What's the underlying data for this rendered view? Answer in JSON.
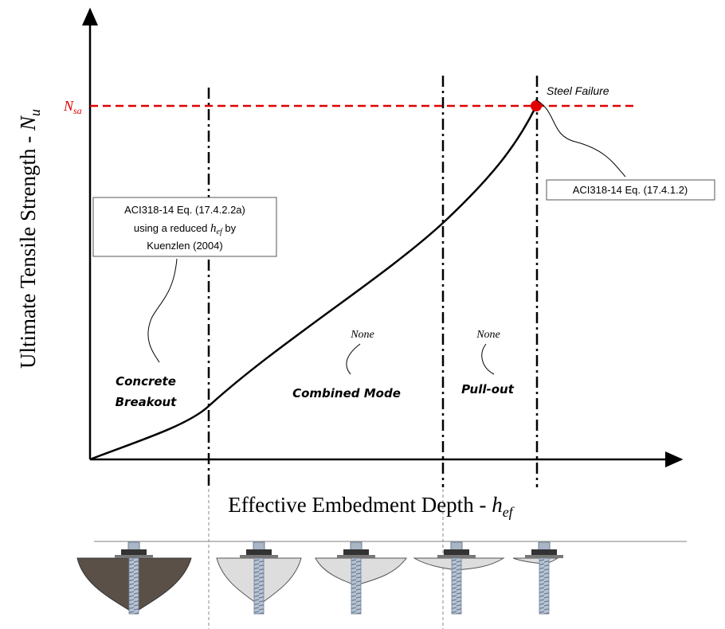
{
  "n_sa": {
    "base": "N",
    "sub": "sa"
  },
  "y_axis_label": {
    "text": "Ultimate Tensile Strength - ",
    "base": "N",
    "sub": "u"
  },
  "x_axis_label": {
    "text": "Effective Embedment Depth - ",
    "base": "h",
    "sub": "ef"
  },
  "steel_failure": "Steel Failure",
  "steel_equation": "ACI318-14 Eq. (17.4.1.2)",
  "breakout_equation": {
    "line1": "ACI318-14 Eq. (17.4.2.2a)",
    "line2_before": "using a reduced ",
    "line2_base": "h",
    "line2_sub": "ef",
    "line2_after": " by",
    "line3": "Kuenzlen (2004)"
  },
  "modes": {
    "concrete_breakout": [
      "Concrete",
      "Breakout"
    ],
    "combined": "Combined Mode",
    "pull_out": "Pull-out"
  },
  "none_labels": [
    "None",
    "None"
  ]
}
